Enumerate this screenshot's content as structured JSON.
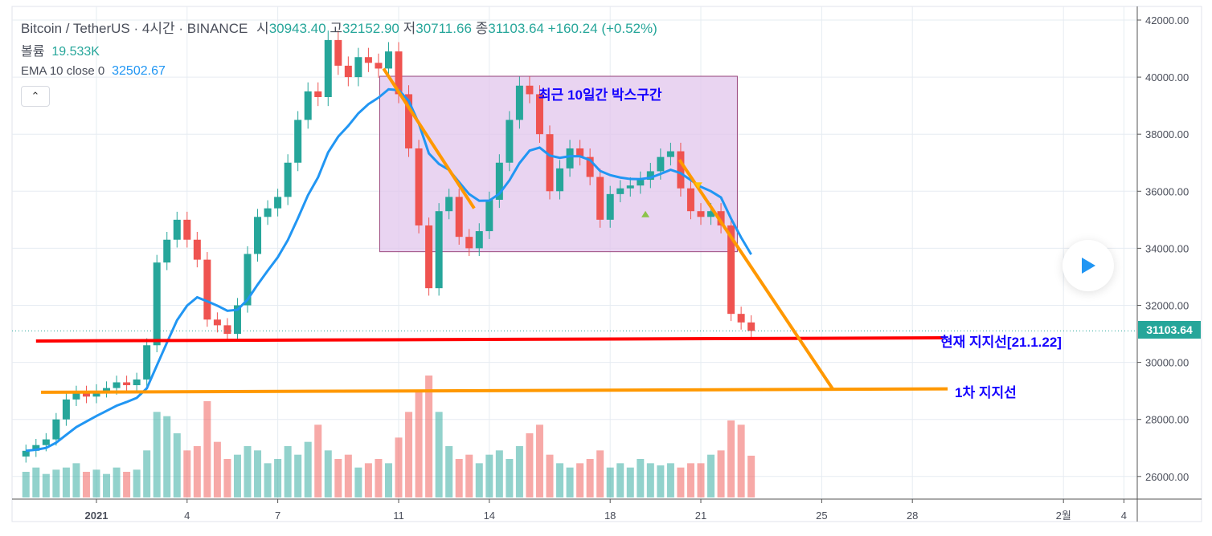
{
  "header": {
    "symbol": "Bitcoin / TetherUS",
    "interval": "4시간",
    "exchange": "BINANCE",
    "open_label": "시",
    "open": "30943.40",
    "high_label": "고",
    "high": "32152.90",
    "low_label": "저",
    "low": "30711.66",
    "close_label": "종",
    "close": "31103.64",
    "change": "+160.24 (+0.52%)",
    "volume_label": "볼륨",
    "volume": "19.533K",
    "ema_label": "EMA 10 close 0",
    "ema_value": "32502.67",
    "collapse_icon": "chevron-up-icon"
  },
  "annotations": {
    "box_label": "최근 10일간 박스구간",
    "support_current": "현재 지지선[21.1.22]",
    "support_first": "1차 지지선"
  },
  "price_tag": "31103.64",
  "colors": {
    "up": "#26a69a",
    "down": "#ef5350",
    "ema": "#2196f3",
    "support_current": "#ff0000",
    "support_first": "#ff9800",
    "box_fill": "#e1c6ec",
    "box_border": "#9c4a7f",
    "annotation_text": "#1400ff"
  },
  "chart_data": {
    "type": "candlestick",
    "y_ticks": [
      "26000.00",
      "28000.00",
      "30000.00",
      "32000.00",
      "34000.00",
      "36000.00",
      "38000.00",
      "40000.00",
      "42000.00"
    ],
    "ylim": [
      25000,
      42300
    ],
    "x_ticks": [
      {
        "label": "2021",
        "date": "2021-01-01"
      },
      {
        "label": "4",
        "date": "2021-01-04"
      },
      {
        "label": "7",
        "date": "2021-01-07"
      },
      {
        "label": "11",
        "date": "2021-01-11"
      },
      {
        "label": "14",
        "date": "2021-01-14"
      },
      {
        "label": "18",
        "date": "2021-01-18"
      },
      {
        "label": "21",
        "date": "2021-01-21"
      },
      {
        "label": "25",
        "date": "2021-01-25"
      },
      {
        "label": "28",
        "date": "2021-01-28"
      },
      {
        "label": "2월",
        "date": "2021-02-02"
      },
      {
        "label": "4",
        "date": "2021-02-04"
      }
    ],
    "grid": true,
    "start": "2020-12-29T16:00",
    "step_hours": 8,
    "first_open": 26700,
    "close": [
      26900,
      27100,
      27300,
      28000,
      28700,
      28950,
      28800,
      29000,
      29100,
      29300,
      29200,
      29400,
      30600,
      33500,
      34300,
      35000,
      34300,
      33600,
      31500,
      31300,
      31000,
      32000,
      33800,
      35100,
      35400,
      35800,
      37000,
      38500,
      39500,
      39300,
      41300,
      40400,
      40000,
      40700,
      40500,
      40300,
      40900,
      39400,
      37500,
      34800,
      32600,
      35300,
      35800,
      34400,
      34000,
      34600,
      35700,
      37000,
      38500,
      39700,
      39400,
      38000,
      36000,
      36800,
      37500,
      37200,
      36500,
      35000,
      35900,
      36100,
      36200,
      36400,
      36700,
      37200,
      37400,
      36100,
      35300,
      35100,
      35300,
      34800,
      31700,
      31400,
      31103.64
    ],
    "volume_k": [
      12,
      14,
      11,
      13,
      14,
      16,
      12,
      13,
      11,
      14,
      12,
      13,
      22,
      40,
      38,
      30,
      22,
      24,
      45,
      26,
      18,
      20,
      24,
      22,
      16,
      18,
      24,
      20,
      26,
      34,
      22,
      18,
      20,
      14,
      16,
      18,
      16,
      28,
      40,
      50,
      57,
      40,
      24,
      18,
      20,
      16,
      20,
      22,
      18,
      24,
      30,
      34,
      20,
      16,
      14,
      16,
      18,
      22,
      14,
      16,
      14,
      18,
      16,
      15,
      16,
      14,
      16,
      16,
      20,
      22,
      36,
      34,
      19.533
    ],
    "ema_period": 10,
    "drawings": {
      "box": {
        "from": "2021-01-10T09:00",
        "to": "2021-01-22T05:00",
        "top": 40030,
        "bottom": 33880
      },
      "support_current": {
        "from": "2020-12-30T00:00",
        "to": "2021-01-29T00:00",
        "price_from": 30750,
        "price_to": 30860
      },
      "support_first": {
        "from": "2020-12-30T04:00",
        "to": "2021-01-29T04:00",
        "price_from": 28950,
        "price_to": 29070
      },
      "trend_lines": [
        {
          "from": "2021-01-10T12:00",
          "to": "2021-01-13T12:00",
          "price_from": 40300,
          "price_to": 35400
        },
        {
          "from": "2021-01-20T07:00",
          "to": "2021-01-25T09:00",
          "price_from": 37100,
          "price_to": 29050
        }
      ],
      "markers": [
        {
          "type": "triangle-up",
          "date": "2021-01-19T04:00",
          "price": 35200,
          "color": "#8bc34a"
        },
        {
          "type": "triangle-down",
          "date": "2021-01-20T22:00",
          "price": 36200,
          "color": "#ffc107"
        }
      ]
    }
  }
}
